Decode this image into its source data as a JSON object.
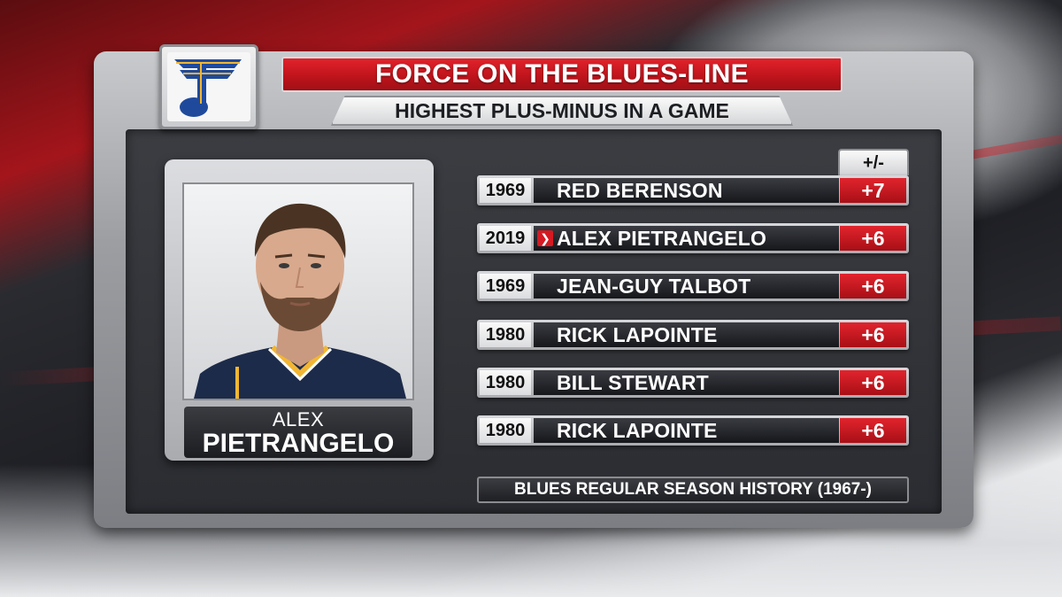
{
  "graphic": {
    "title": "FORCE ON THE BLUES-LINE",
    "subtitle": "HIGHEST PLUS-MINUS IN A GAME",
    "column_header": "+/-",
    "footer": "BLUES REGULAR SEASON HISTORY (1967-)"
  },
  "player": {
    "first_name": "ALEX",
    "last_name": "PIETRANGELO"
  },
  "colors": {
    "accent_red": "#d51a23",
    "team_blue": "#1f4a9c",
    "team_gold": "#f2b632"
  },
  "rows": [
    {
      "year": "1969",
      "name": "RED BERENSON",
      "value": "+7",
      "highlight": false
    },
    {
      "year": "2019",
      "name": "ALEX PIETRANGELO",
      "value": "+6",
      "highlight": true
    },
    {
      "year": "1969",
      "name": "JEAN-GUY TALBOT",
      "value": "+6",
      "highlight": false
    },
    {
      "year": "1980",
      "name": "RICK LAPOINTE",
      "value": "+6",
      "highlight": false
    },
    {
      "year": "1980",
      "name": "BILL STEWART",
      "value": "+6",
      "highlight": false
    },
    {
      "year": "1980",
      "name": "RICK LAPOINTE",
      "value": "+6",
      "highlight": false
    }
  ],
  "icons": {
    "team_logo": "blues-note-logo-icon",
    "highlight_marker": "chevron-right-icon"
  }
}
